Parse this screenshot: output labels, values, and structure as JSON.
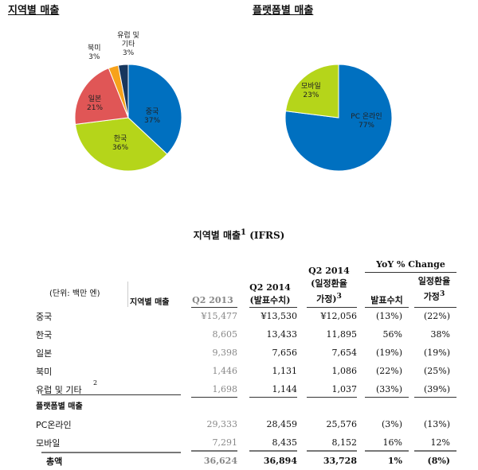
{
  "charts": {
    "region": {
      "title": "지역별 매출",
      "slices": [
        {
          "label": "중국",
          "pct": 37,
          "color": "#0070c0"
        },
        {
          "label": "한국",
          "pct": 36,
          "color": "#b5d51a"
        },
        {
          "label": "일본",
          "pct": 21,
          "color": "#e05656"
        },
        {
          "label": "북미",
          "pct": 3,
          "color": "#f7a21b"
        },
        {
          "label": "유럽 및 기타",
          "pct": 3,
          "color": "#17375e"
        }
      ]
    },
    "platform": {
      "title": "플랫폼별 매출",
      "slices": [
        {
          "label": "PC 온라인",
          "pct": 77,
          "color": "#0070c0"
        },
        {
          "label": "모바일",
          "pct": 23,
          "color": "#b5d51a"
        }
      ]
    }
  },
  "chart_data": [
    {
      "type": "pie",
      "title": "지역별 매출",
      "categories": [
        "중국",
        "한국",
        "일본",
        "북미",
        "유럽 및 기타"
      ],
      "values": [
        37,
        36,
        21,
        3,
        3
      ]
    },
    {
      "type": "pie",
      "title": "플랫폼별 매출",
      "categories": [
        "PC 온라인",
        "모바일"
      ],
      "values": [
        77,
        23
      ]
    }
  ],
  "table": {
    "title": "지역별 매출",
    "title_sup": "1",
    "title_suffix": "(IFRS)",
    "unit": "(단위: 백만 엔)",
    "section1": "지역별 매출",
    "section2": "플랫폼별 매출",
    "headers": {
      "q2_2013": "Q2 2013",
      "q2_2014_a": "Q2 2014",
      "q2_2014_b": "(발표수치)",
      "q2_2014c_a": "Q2 2014",
      "q2_2014c_b": "(일정환율",
      "q2_2014c_c": "가정)",
      "sup3": "3",
      "yoy": "YoY % Change",
      "yoy1": "발표수치",
      "yoy2a": "일정환율",
      "yoy2b": "가정"
    },
    "rows": [
      {
        "label": "중국",
        "v": [
          "¥15,477",
          "¥13,530",
          "¥12,056",
          "(13%)",
          "(22%)"
        ]
      },
      {
        "label": "한국",
        "v": [
          "8,605",
          "13,433",
          "11,895",
          "56%",
          "38%"
        ]
      },
      {
        "label": "일본",
        "v": [
          "9,398",
          "7,656",
          "7,654",
          "(19%)",
          "(19%)"
        ]
      },
      {
        "label": "북미",
        "v": [
          "1,446",
          "1,131",
          "1,086",
          "(22%)",
          "(25%)"
        ]
      },
      {
        "label": "유럽 및 기타",
        "sup": "2",
        "v": [
          "1,698",
          "1,144",
          "1,037",
          "(33%)",
          "(39%)"
        ]
      },
      {
        "label": "PC온라인",
        "v": [
          "29,333",
          "28,459",
          "25,576",
          "(3%)",
          "(13%)"
        ]
      },
      {
        "label": "모바일",
        "v": [
          "7,291",
          "8,435",
          "8,152",
          "16%",
          "12%"
        ]
      },
      {
        "label": "총액",
        "v": [
          "36,624",
          "36,894",
          "33,728",
          "1%",
          "(8%)"
        ]
      }
    ]
  }
}
